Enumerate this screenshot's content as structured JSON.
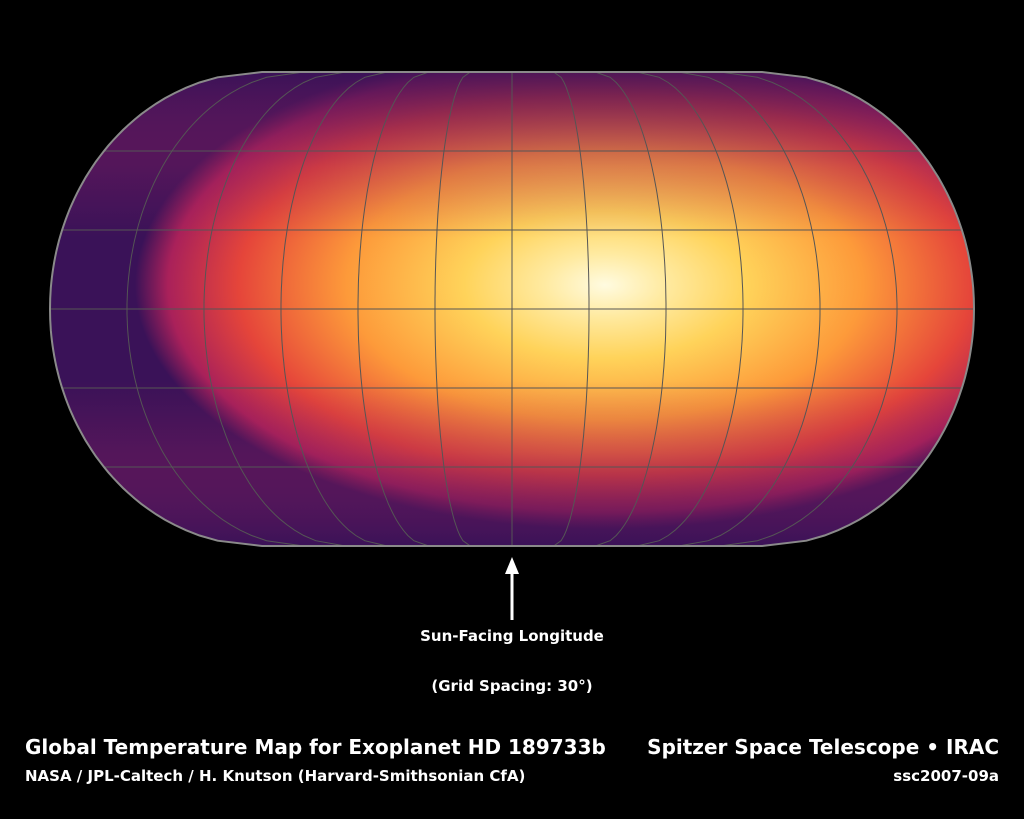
{
  "map": {
    "grid_spacing_degrees": 30,
    "sun_facing_longitude_degrees": 0,
    "colors": {
      "hottest": "#fffbe0",
      "hot": "#ffd35a",
      "warm": "#fd9a3a",
      "mid": "#e5453a",
      "cool": "#a9215a",
      "coldest": "#3a1258",
      "grid": "#555555",
      "outline": "#8a8a8a"
    }
  },
  "annotations": {
    "arrow_label": "Sun-Facing Longitude",
    "grid_label": "(Grid Spacing: 30°)"
  },
  "footer": {
    "title_left": "Global Temperature Map for Exoplanet HD 189733b",
    "title_right": "Spitzer Space Telescope • IRAC",
    "credit_left": "NASA / JPL-Caltech / H. Knutson (Harvard-Smithsonian CfA)",
    "credit_right": "ssc2007-09a"
  }
}
